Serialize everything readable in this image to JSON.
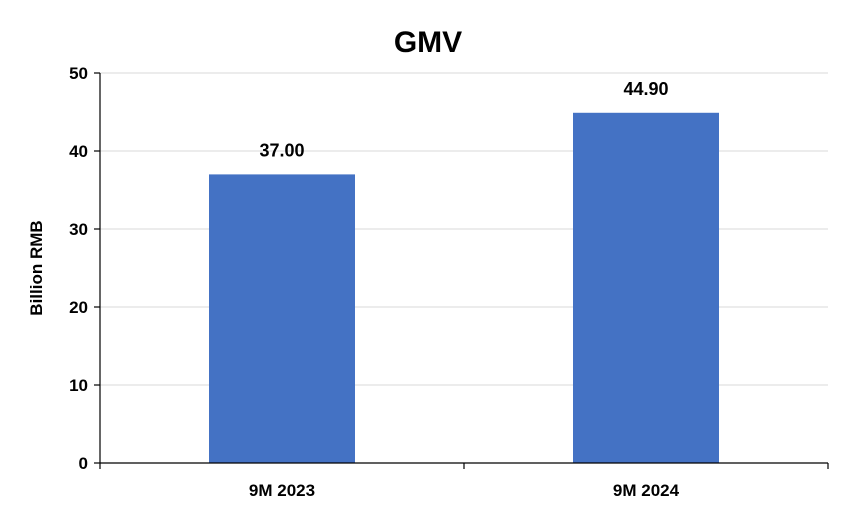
{
  "chart_data": {
    "type": "bar",
    "title": "GMV",
    "xlabel": "",
    "ylabel": "Billion RMB",
    "categories": [
      "9M 2023",
      "9M 2024"
    ],
    "values": [
      37.0,
      44.9
    ],
    "value_labels": [
      "37.00",
      "44.90"
    ],
    "ylim": [
      0,
      50
    ],
    "yticks": [
      0,
      10,
      20,
      30,
      40,
      50
    ],
    "grid": true,
    "legend": "none",
    "bar_color": "#4472C4"
  }
}
